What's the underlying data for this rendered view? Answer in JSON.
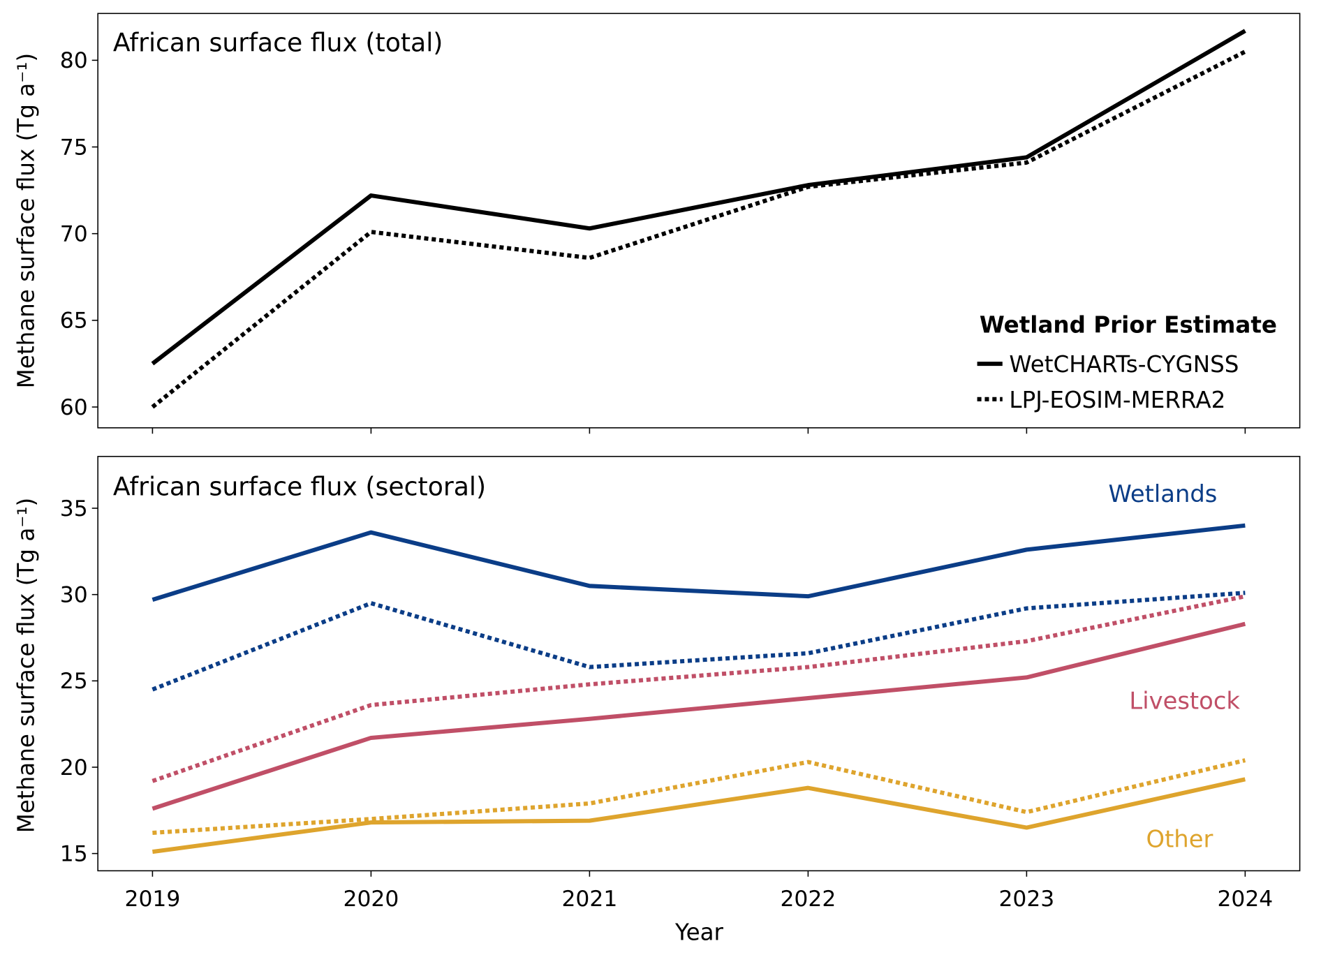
{
  "chart_data": [
    {
      "type": "line",
      "title": "African surface flux (total)",
      "xlabel": "",
      "ylabel": "Methane surface flux (Tg a⁻¹)",
      "x": [
        2019,
        2020,
        2021,
        2022,
        2023,
        2024
      ],
      "xlim": [
        2018.75,
        2024.25
      ],
      "ylim": [
        58.8,
        82.7
      ],
      "yticks": [
        60,
        65,
        70,
        75,
        80
      ],
      "legend": {
        "title": "Wetland Prior Estimate",
        "placement": "lower-right"
      },
      "series": [
        {
          "name": "WetCHARTs-CYGNSS",
          "style": "solid",
          "color": "#000000",
          "values": [
            62.5,
            72.2,
            70.3,
            72.8,
            74.4,
            81.7
          ]
        },
        {
          "name": "LPJ-EOSIM-MERRA2",
          "style": "dotted",
          "color": "#000000",
          "values": [
            60.0,
            70.1,
            68.6,
            72.7,
            74.1,
            80.5
          ]
        }
      ]
    },
    {
      "type": "line",
      "title": "African surface flux (sectoral)",
      "xlabel": "Year",
      "ylabel": "Methane surface flux (Tg a⁻¹)",
      "x": [
        2019,
        2020,
        2021,
        2022,
        2023,
        2024
      ],
      "xlim": [
        2018.75,
        2024.25
      ],
      "ylim": [
        14.0,
        38.0
      ],
      "yticks": [
        15,
        20,
        25,
        30,
        35
      ],
      "annotations": [
        {
          "text": "Wetlands",
          "color": "#0b3d87"
        },
        {
          "text": "Livestock",
          "color": "#c04f67"
        },
        {
          "text": "Other",
          "color": "#dea42d"
        }
      ],
      "series": [
        {
          "name": "Wetlands (WetCHARTs-CYGNSS)",
          "style": "solid",
          "color": "#0b3d87",
          "values": [
            29.7,
            33.6,
            30.5,
            29.9,
            32.6,
            34.0
          ]
        },
        {
          "name": "Wetlands (LPJ-EOSIM-MERRA2)",
          "style": "dotted",
          "color": "#0b3d87",
          "values": [
            24.5,
            29.5,
            25.8,
            26.6,
            29.2,
            30.1
          ]
        },
        {
          "name": "Livestock (WetCHARTs-CYGNSS)",
          "style": "solid",
          "color": "#c04f67",
          "values": [
            17.6,
            21.7,
            22.8,
            24.0,
            25.2,
            28.3
          ]
        },
        {
          "name": "Livestock (LPJ-EOSIM-MERRA2)",
          "style": "dotted",
          "color": "#c04f67",
          "values": [
            19.2,
            23.6,
            24.8,
            25.8,
            27.3,
            29.9
          ]
        },
        {
          "name": "Other (WetCHARTs-CYGNSS)",
          "style": "solid",
          "color": "#dea42d",
          "values": [
            15.1,
            16.8,
            16.9,
            18.8,
            16.5,
            19.3
          ]
        },
        {
          "name": "Other (LPJ-EOSIM-MERRA2)",
          "style": "dotted",
          "color": "#dea42d",
          "values": [
            16.2,
            17.0,
            17.9,
            20.3,
            17.4,
            20.4
          ]
        }
      ]
    }
  ]
}
